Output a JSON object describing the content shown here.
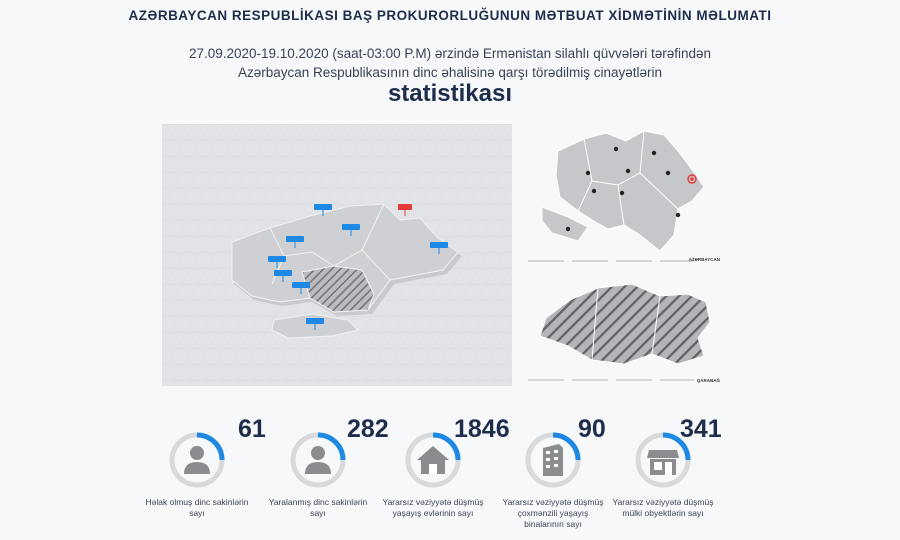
{
  "header": {
    "title": "AZƏRBAYCAN RESPUBLİKASI BAŞ PROKURORLUĞUNUN MƏTBUAT XİDMƏTİNİN MƏLUMATI",
    "subtitle_line1": "27.09.2020-19.10.2020 (saat-03:00 P.M) ərzində Ermənistan silahlı qüvvələri tərəfindən",
    "subtitle_line2": "Azərbaycan Respublikasının dinc əhalisinə qarşı törədilmiş cinayətlərin",
    "subtitle_bold": "statistikası"
  },
  "maps": {
    "azerbaijan_label": "AZƏRBAYCAN",
    "karabakh_label": "QARABAĞ"
  },
  "stats": [
    {
      "value": "61",
      "label": "Həlak olmuş dinc sakinlərin sayı",
      "icon": "person-icon"
    },
    {
      "value": "282",
      "label": "Yaralanmış dinc sakinlərin sayı",
      "icon": "person-icon"
    },
    {
      "value": "1846",
      "label": "Yararsız vəziyyətə düşmüş yaşayış evlərinin sayı",
      "icon": "house-icon"
    },
    {
      "value": "90",
      "label": "Yararsız vəziyyətə düşmüş çoxmənzili yaşayış binalarının sayı",
      "icon": "building-icon"
    },
    {
      "value": "341",
      "label": "Yararsız vəziyyətə düşmüş mülki obyektlərin sayı",
      "icon": "shop-icon"
    }
  ],
  "colors": {
    "accent": "#1e88e5",
    "dark": "#1f2d4d",
    "ring_gray": "#d8d9dc",
    "icon_gray": "#8a8c90"
  }
}
